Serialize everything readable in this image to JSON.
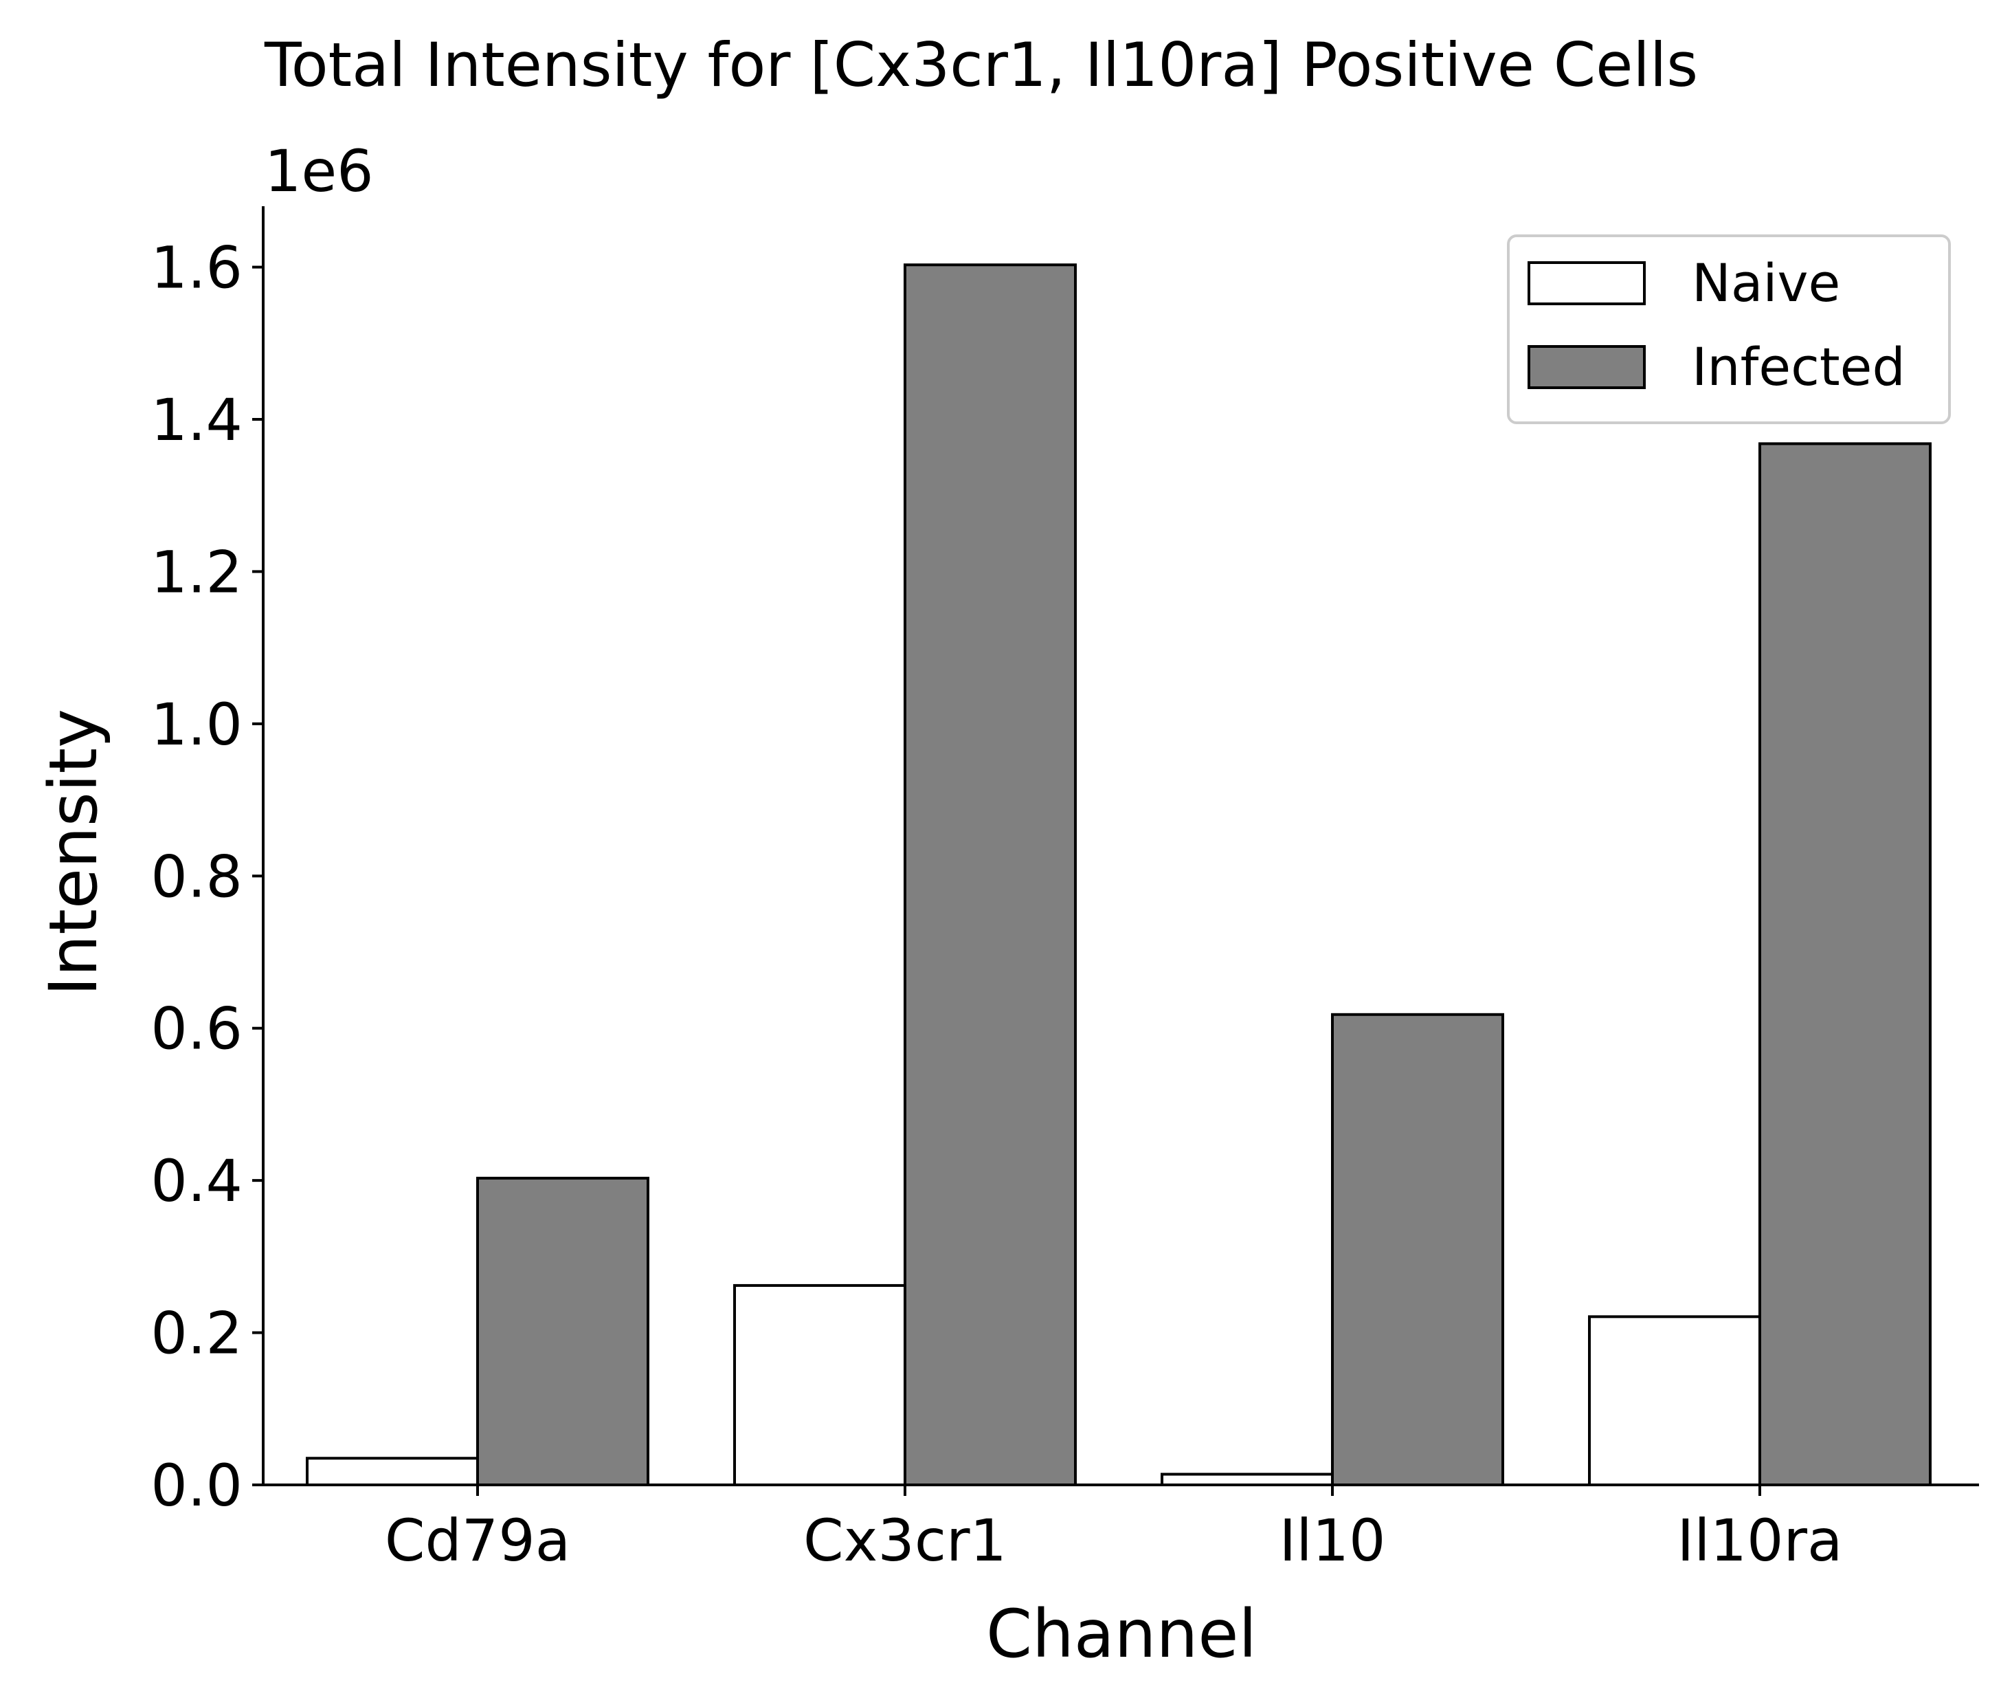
{
  "chart_data": {
    "type": "bar",
    "title": "Total Intensity for [Cx3cr1, Il10ra] Positive Cells",
    "xlabel": "Channel",
    "ylabel": "Intensity",
    "y_offset_label": "1e6",
    "categories": [
      "Cd79a",
      "Cx3cr1",
      "Il10",
      "Il10ra"
    ],
    "series": [
      {
        "name": "Naive",
        "values": [
          35000,
          262000,
          14000,
          221000
        ],
        "color": "#ffffff"
      },
      {
        "name": "Infected",
        "values": [
          403000,
          1603000,
          618000,
          1368000
        ],
        "color": "#808080"
      }
    ],
    "ylim": [
      0,
      1680000
    ],
    "yticks": [
      0,
      200000,
      400000,
      600000,
      800000,
      1000000,
      1200000,
      1400000,
      1600000
    ],
    "ytick_labels": [
      "0.0",
      "0.2",
      "0.4",
      "0.6",
      "0.8",
      "1.0",
      "1.2",
      "1.4",
      "1.6"
    ],
    "grid": false,
    "legend_position": "top-right",
    "edge_color": "#000000"
  }
}
